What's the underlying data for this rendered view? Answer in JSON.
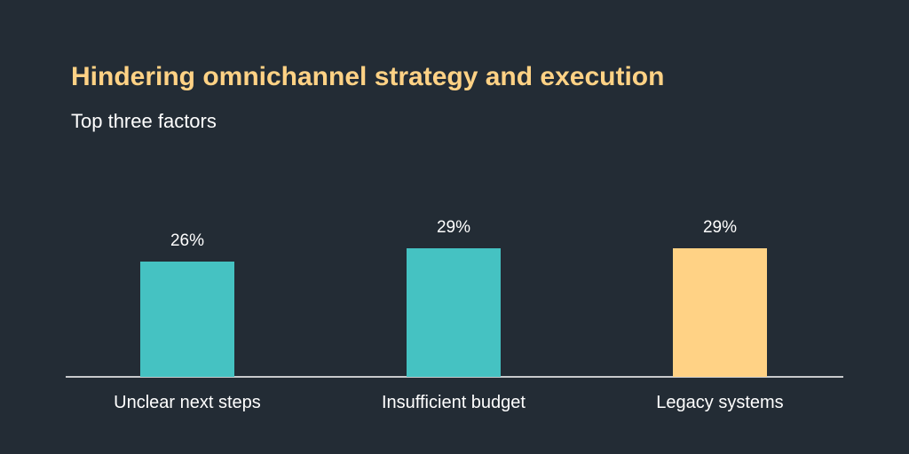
{
  "chart_data": {
    "type": "bar",
    "title": "Hindering omnichannel strategy and execution",
    "subtitle": "Top three factors",
    "categories": [
      "Unclear next steps",
      "Insufficient budget",
      "Legacy systems"
    ],
    "values": [
      26,
      29,
      29
    ],
    "value_labels": [
      "26%",
      "29%",
      "29%"
    ],
    "bar_colors": [
      "#45c2c2",
      "#45c2c2",
      "#ffd285"
    ],
    "xlabel": "",
    "ylabel": "",
    "ylim": [
      0,
      29
    ],
    "unit": "%",
    "grid": false
  },
  "colors": {
    "background": "#232c35",
    "title": "#ffd285",
    "text": "#ffffff",
    "axis": "#ffffff"
  }
}
